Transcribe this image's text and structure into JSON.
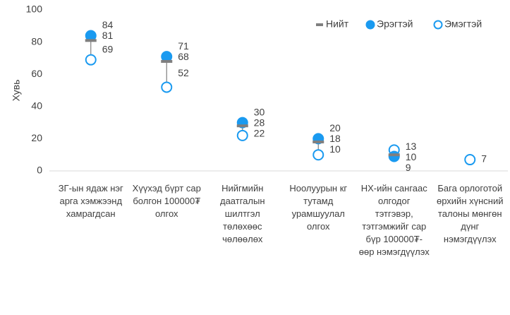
{
  "chart_data": {
    "type": "dot",
    "y_label": "Хувь",
    "categories": [
      "ЗГ-ын ядаж нэг арга хэмжээнд хамрагдсан",
      "Хүүхэд бүрт сар болгон 100000₮ олгох",
      "Нийгмийн даатгалын шилтгэл төлөхөөс чөлөөлөх",
      "Ноолуурын кг тутамд урамшуулал олгох",
      "НХ-ийн сангаас олгодог тэтгэвэр, тэтгэмжийг сар бүр 100000₮-өөр нэмэгдүүлэх",
      "Бага орлоготой өрхийн хүнсний талоны мөнгөн дүнг нэмэгдүүлэх"
    ],
    "series": [
      {
        "name": "Нийт",
        "color": "#7f7f7f",
        "marker": "dash",
        "values": [
          81,
          68,
          28,
          18,
          10,
          null
        ]
      },
      {
        "name": "Эрэгтэй",
        "color": "#1a9af0",
        "marker": "filled",
        "values": [
          84,
          71,
          30,
          20,
          9,
          null
        ]
      },
      {
        "name": "Эмэгтэй",
        "color": "#1a9af0",
        "marker": "hollow",
        "values": [
          69,
          52,
          22,
          10,
          13,
          7
        ]
      }
    ],
    "ylim": [
      0,
      100
    ],
    "yticks": [
      0,
      20,
      40,
      60,
      80,
      100
    ],
    "grid": false,
    "legend": "top-right"
  }
}
